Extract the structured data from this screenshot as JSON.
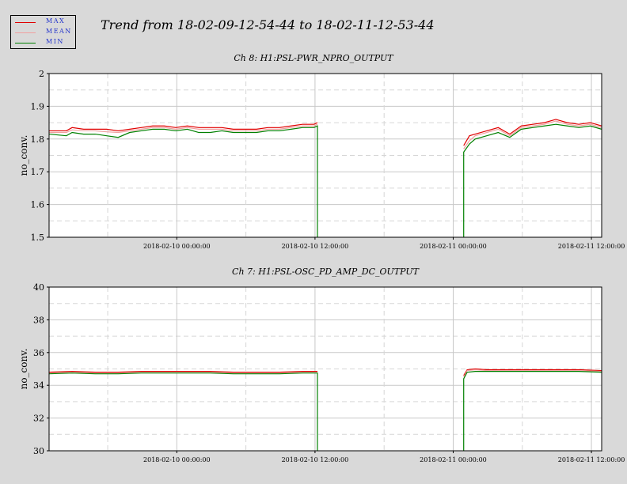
{
  "main_title": "Trend from 18-02-09-12-54-44 to 18-02-11-12-53-44",
  "legend": [
    {
      "label": "MAX",
      "color": "#e00000"
    },
    {
      "label": "MEAN",
      "color": "#f0a0a0"
    },
    {
      "label": "MIN",
      "color": "#008000"
    }
  ],
  "chart_data": [
    {
      "type": "line",
      "title": "Ch 8: H1:PSL-PWR_NPRO_OUTPUT",
      "ylabel": "no_conv.",
      "xlabel": "",
      "x_range_hours": [
        0,
        47.98
      ],
      "ylim": [
        1.5,
        2.0
      ],
      "yticks": [
        1.5,
        1.6,
        1.7,
        1.8,
        1.9,
        2
      ],
      "ytick_labels": [
        "1.5",
        "1.6",
        "1.7",
        "1.8",
        "1.9",
        "2"
      ],
      "xticks_hours": [
        11.09,
        23.09,
        35.09,
        47.09
      ],
      "xtick_labels": [
        "2018-02-10 00:00:00",
        "2018-02-10 12:00:00",
        "2018-02-11 00:00:00",
        "2018-02-11 12:00:00"
      ],
      "grid": true,
      "segments": [
        {
          "x_hours": [
            0,
            1.5,
            2,
            3,
            4,
            5,
            6,
            7,
            8,
            9,
            10,
            11,
            12,
            13,
            14,
            15,
            16,
            17,
            18,
            19,
            20,
            21,
            22,
            23,
            23.3
          ],
          "MAX": [
            1.825,
            1.825,
            1.835,
            1.83,
            1.83,
            1.83,
            1.825,
            1.83,
            1.835,
            1.84,
            1.84,
            1.835,
            1.84,
            1.835,
            1.835,
            1.835,
            1.83,
            1.83,
            1.83,
            1.835,
            1.835,
            1.84,
            1.845,
            1.845,
            1.85
          ],
          "MEAN": [
            1.82,
            1.82,
            1.828,
            1.825,
            1.825,
            1.822,
            1.82,
            1.825,
            1.83,
            1.835,
            1.835,
            1.83,
            1.835,
            1.83,
            1.83,
            1.83,
            1.825,
            1.825,
            1.825,
            1.83,
            1.83,
            1.835,
            1.84,
            1.84,
            1.845
          ],
          "MIN": [
            1.815,
            1.81,
            1.82,
            1.815,
            1.815,
            1.81,
            1.805,
            1.82,
            1.825,
            1.83,
            1.83,
            1.825,
            1.83,
            1.82,
            1.82,
            1.825,
            1.82,
            1.82,
            1.82,
            1.825,
            1.825,
            1.83,
            1.835,
            1.835,
            1.84
          ],
          "drop_after": 1.5
        },
        {
          "x_hours": [
            36.0,
            36.5,
            37,
            38,
            39,
            40,
            41,
            42,
            43,
            44,
            45,
            46,
            47,
            47.98
          ],
          "MAX": [
            1.78,
            1.81,
            1.815,
            1.825,
            1.835,
            1.815,
            1.84,
            1.845,
            1.85,
            1.86,
            1.85,
            1.845,
            1.85,
            1.84
          ],
          "MEAN": [
            1.77,
            1.795,
            1.81,
            1.82,
            1.83,
            1.81,
            1.835,
            1.84,
            1.845,
            1.855,
            1.845,
            1.84,
            1.845,
            1.835
          ],
          "MIN": [
            1.76,
            1.785,
            1.8,
            1.81,
            1.82,
            1.805,
            1.83,
            1.835,
            1.84,
            1.845,
            1.84,
            1.835,
            1.84,
            1.83
          ],
          "rise_from": 1.5
        }
      ]
    },
    {
      "type": "line",
      "title": "Ch 7: H1:PSL-OSC_PD_AMP_DC_OUTPUT",
      "ylabel": "no_conv.",
      "xlabel": "",
      "x_range_hours": [
        0,
        47.98
      ],
      "ylim": [
        30,
        40
      ],
      "yticks": [
        30,
        32,
        34,
        36,
        38,
        40
      ],
      "ytick_labels": [
        "30",
        "32",
        "34",
        "36",
        "38",
        "40"
      ],
      "xticks_hours": [
        11.09,
        23.09,
        35.09,
        47.09
      ],
      "xtick_labels": [
        "2018-02-10 00:00:00",
        "2018-02-10 12:00:00",
        "2018-02-11 00:00:00",
        "2018-02-11 12:00:00"
      ],
      "grid": true,
      "segments": [
        {
          "x_hours": [
            0,
            2,
            4,
            6,
            8,
            10,
            12,
            14,
            16,
            18,
            20,
            22,
            23.3
          ],
          "MAX": [
            34.8,
            34.85,
            34.8,
            34.8,
            34.85,
            34.85,
            34.85,
            34.85,
            34.8,
            34.8,
            34.8,
            34.85,
            34.85
          ],
          "MEAN": [
            34.75,
            34.8,
            34.75,
            34.75,
            34.8,
            34.8,
            34.8,
            34.8,
            34.75,
            34.75,
            34.75,
            34.8,
            34.8
          ],
          "MIN": [
            34.7,
            34.75,
            34.7,
            34.7,
            34.75,
            34.75,
            34.75,
            34.75,
            34.7,
            34.7,
            34.7,
            34.75,
            34.75
          ],
          "drop_after": 30
        },
        {
          "x_hours": [
            36.0,
            36.3,
            37,
            38,
            40,
            42,
            44,
            46,
            47.98
          ],
          "MAX": [
            34.6,
            34.95,
            35.0,
            34.95,
            34.95,
            34.95,
            34.95,
            34.95,
            34.9
          ],
          "MEAN": [
            34.5,
            34.9,
            34.95,
            34.9,
            34.9,
            34.9,
            34.9,
            34.9,
            34.85
          ],
          "MIN": [
            34.4,
            34.8,
            34.85,
            34.85,
            34.85,
            34.85,
            34.85,
            34.85,
            34.8
          ],
          "rise_from": 30
        }
      ]
    }
  ]
}
